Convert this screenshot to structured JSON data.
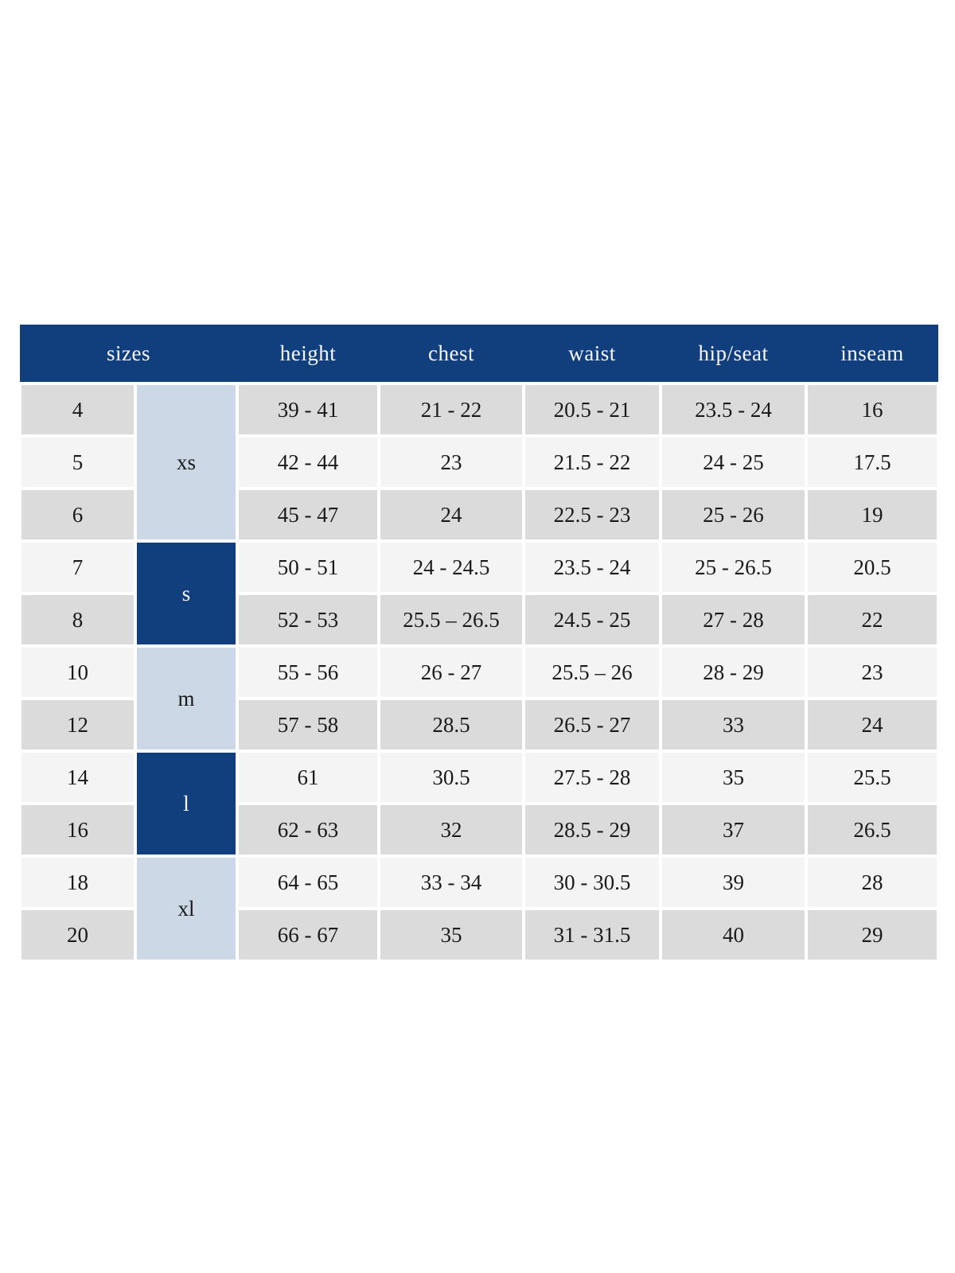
{
  "colors": {
    "header_bg": "#113e7d",
    "header_text": "#f8f8f8",
    "group_dark_bg": "#113e7d",
    "group_light_bg": "#ccd8e6",
    "row_stripe_dark": "#dbdbdb",
    "row_stripe_light": "#f4f4f4",
    "body_text": "#1a1a1a",
    "page_bg": "#ffffff"
  },
  "size_chart": {
    "columns": [
      "sizes",
      "height",
      "chest",
      "waist",
      "hip/seat",
      "inseam"
    ],
    "groups": [
      {
        "label": "xs",
        "shade": "light",
        "rows": [
          {
            "size": "4",
            "height": "39 - 41",
            "chest": "21 - 22",
            "waist": "20.5 - 21",
            "hip_seat": "23.5 - 24",
            "inseam": "16"
          },
          {
            "size": "5",
            "height": "42 - 44",
            "chest": "23",
            "waist": "21.5 - 22",
            "hip_seat": "24 - 25",
            "inseam": "17.5"
          },
          {
            "size": "6",
            "height": "45 - 47",
            "chest": "24",
            "waist": "22.5 - 23",
            "hip_seat": "25 - 26",
            "inseam": "19"
          }
        ]
      },
      {
        "label": "s",
        "shade": "dark",
        "rows": [
          {
            "size": "7",
            "height": "50 - 51",
            "chest": "24 - 24.5",
            "waist": "23.5 - 24",
            "hip_seat": "25 - 26.5",
            "inseam": "20.5"
          },
          {
            "size": "8",
            "height": "52 - 53",
            "chest": "25.5 – 26.5",
            "waist": "24.5 - 25",
            "hip_seat": "27 - 28",
            "inseam": "22"
          }
        ]
      },
      {
        "label": "m",
        "shade": "light",
        "rows": [
          {
            "size": "10",
            "height": "55 - 56",
            "chest": "26 - 27",
            "waist": "25.5 – 26",
            "hip_seat": "28 - 29",
            "inseam": "23"
          },
          {
            "size": "12",
            "height": "57 - 58",
            "chest": "28.5",
            "waist": "26.5 - 27",
            "hip_seat": "33",
            "inseam": "24"
          }
        ]
      },
      {
        "label": "l",
        "shade": "dark",
        "rows": [
          {
            "size": "14",
            "height": "61",
            "chest": "30.5",
            "waist": "27.5 - 28",
            "hip_seat": "35",
            "inseam": "25.5"
          },
          {
            "size": "16",
            "height": "62 - 63",
            "chest": "32",
            "waist": "28.5 - 29",
            "hip_seat": "37",
            "inseam": "26.5"
          }
        ]
      },
      {
        "label": "xl",
        "shade": "light",
        "rows": [
          {
            "size": "18",
            "height": "64 - 65",
            "chest": "33 - 34",
            "waist": "30 - 30.5",
            "hip_seat": "39",
            "inseam": "28"
          },
          {
            "size": "20",
            "height": "66 - 67",
            "chest": "35",
            "waist": "31 - 31.5",
            "hip_seat": "40",
            "inseam": "29"
          }
        ]
      }
    ]
  }
}
